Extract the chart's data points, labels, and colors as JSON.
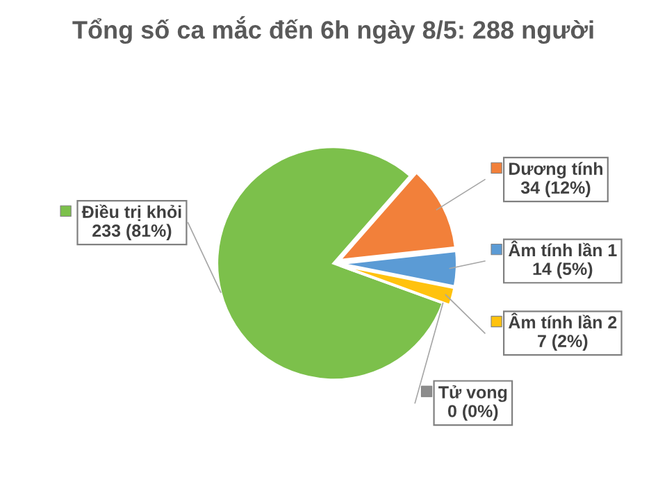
{
  "chart_data": {
    "type": "pie",
    "title": "Tổng số ca mắc đến 6h ngày 8/5: 288 người",
    "categories": [
      "Điều trị khỏi",
      "Dương tính",
      "Âm tính lần 1",
      "Âm tính lần 2",
      "Tử vong"
    ],
    "values": [
      233,
      34,
      14,
      7,
      0
    ],
    "value_labels": [
      "233 (81%)",
      "34 (12%)",
      "14 (5%)",
      "7 (2%)",
      "0 (0%)"
    ],
    "legend": "right",
    "colors": [
      "#7cc04b",
      "#f2803a",
      "#5b9bd5",
      "#ffc20e",
      "#8c8c8c"
    ]
  }
}
